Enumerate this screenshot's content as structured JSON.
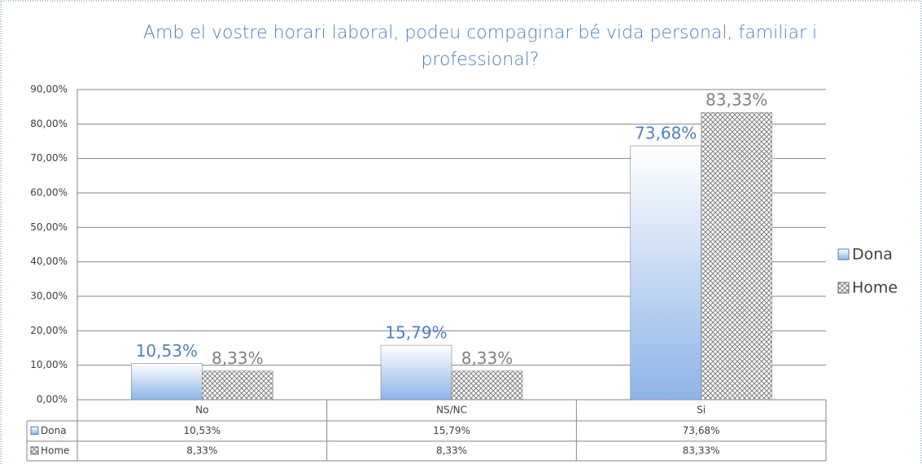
{
  "chart_data": {
    "type": "bar",
    "title": "Amb el vostre horari laboral, podeu compaginar bé vida personal, familiar i professional?",
    "categories": [
      "No",
      "NS/NC",
      "Si"
    ],
    "series": [
      {
        "name": "Dona",
        "color": "#8db4e8",
        "values": [
          10.53,
          15.79,
          73.68
        ],
        "value_labels": [
          "10,53%",
          "15,79%",
          "73,68%"
        ]
      },
      {
        "name": "Home",
        "color": "#808080",
        "values": [
          8.33,
          8.33,
          83.33
        ],
        "value_labels": [
          "8,33%",
          "8,33%",
          "83,33%"
        ]
      }
    ],
    "ylim": [
      0,
      90
    ],
    "yticks": [
      {
        "value": 0,
        "label": "0,00%"
      },
      {
        "value": 10,
        "label": "10,00%"
      },
      {
        "value": 20,
        "label": "20,00%"
      },
      {
        "value": 30,
        "label": "30,00%"
      },
      {
        "value": 40,
        "label": "40,00%"
      },
      {
        "value": 50,
        "label": "50,00%"
      },
      {
        "value": 60,
        "label": "60,00%"
      },
      {
        "value": 70,
        "label": "70,00%"
      },
      {
        "value": 80,
        "label": "80,00%"
      },
      {
        "value": 90,
        "label": "90,00%"
      }
    ],
    "grid": true,
    "legend": "right"
  }
}
